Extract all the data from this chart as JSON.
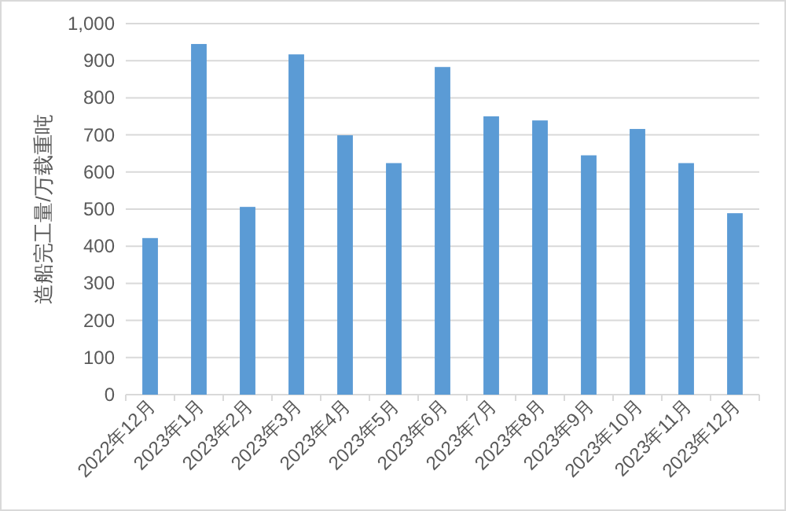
{
  "chart_data": {
    "type": "bar",
    "ylabel": "造船完工量/万载重吨",
    "categories": [
      "2022年12月",
      "2023年1月",
      "2023年2月",
      "2023年3月",
      "2023年4月",
      "2023年5月",
      "2023年6月",
      "2023年7月",
      "2023年8月",
      "2023年9月",
      "2023年10月",
      "2023年11月",
      "2023年12月"
    ],
    "values": [
      422,
      945,
      506,
      917,
      699,
      624,
      883,
      750,
      739,
      645,
      716,
      624,
      489
    ],
    "color": "#5b9bd5",
    "ylim": [
      0,
      1000
    ],
    "yticks": [
      0,
      100,
      200,
      300,
      400,
      500,
      600,
      700,
      800,
      900,
      {
        "value": 1000,
        "label": "1,000"
      }
    ],
    "grid": "y"
  }
}
